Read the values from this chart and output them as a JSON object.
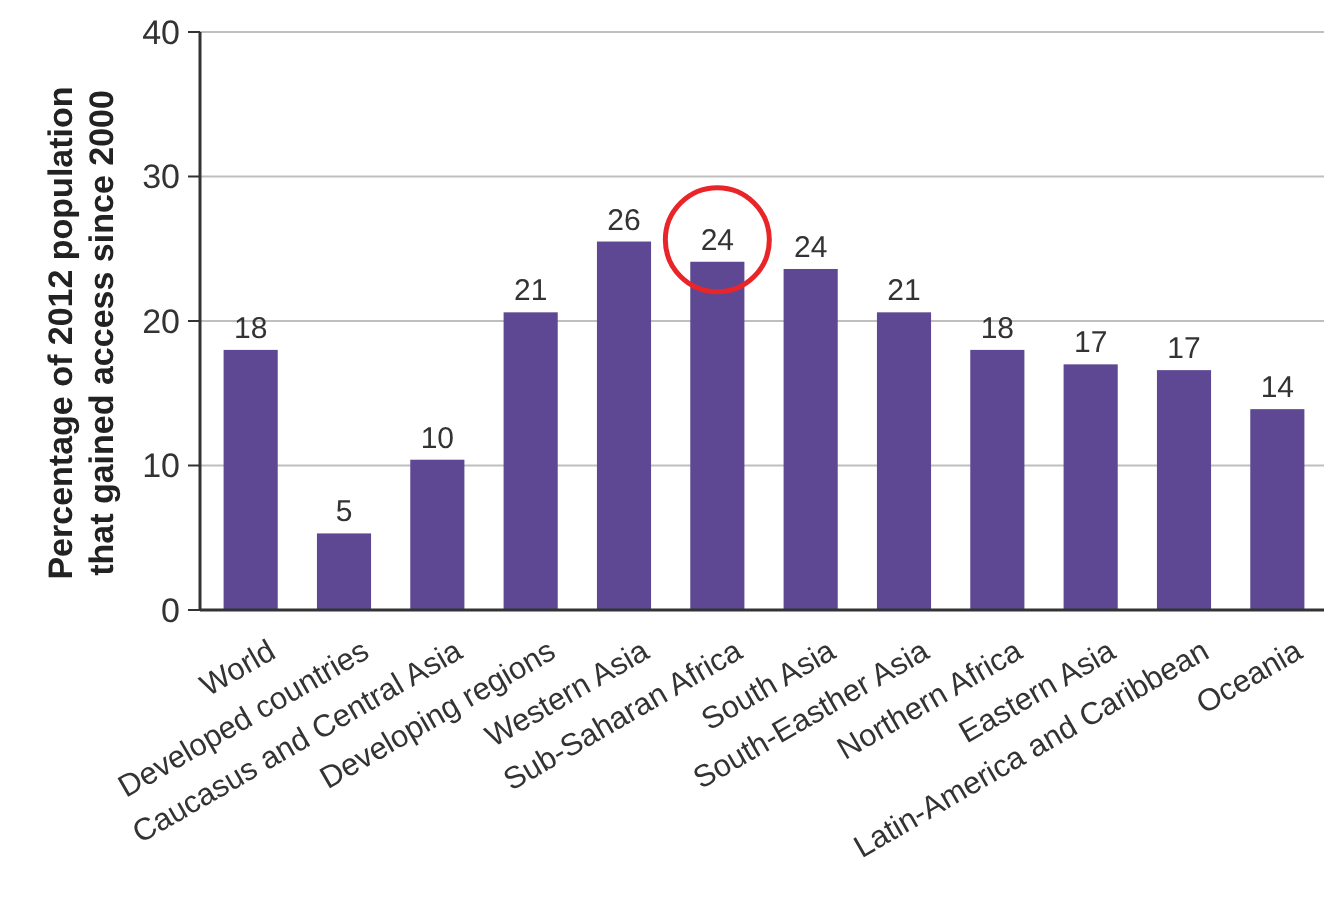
{
  "chart_data": {
    "type": "bar",
    "ylabel": "Percentage of 2012 population\nthat gained access since 2000",
    "categories": [
      "World",
      "Developed countries",
      "Caucasus and Central Asia",
      "Developing regions",
      "Western Asia",
      "Sub-Saharan Africa",
      "South Asia",
      "South-Easther Asia",
      "Northern Africa",
      "Eastern Asia",
      "Latin-America and Caribbean",
      "Oceania"
    ],
    "values": [
      18,
      5.3,
      10.4,
      20.6,
      25.5,
      24.1,
      23.6,
      20.6,
      18,
      17,
      16.6,
      13.9
    ],
    "value_labels": [
      "18",
      "5",
      "10",
      "21",
      "26",
      "24",
      "24",
      "21",
      "18",
      "17",
      "17",
      "14"
    ],
    "color": "#5e4894",
    "ylim": [
      0,
      40
    ],
    "yticks": [
      0,
      10,
      20,
      30,
      40
    ],
    "grid": "y"
  }
}
